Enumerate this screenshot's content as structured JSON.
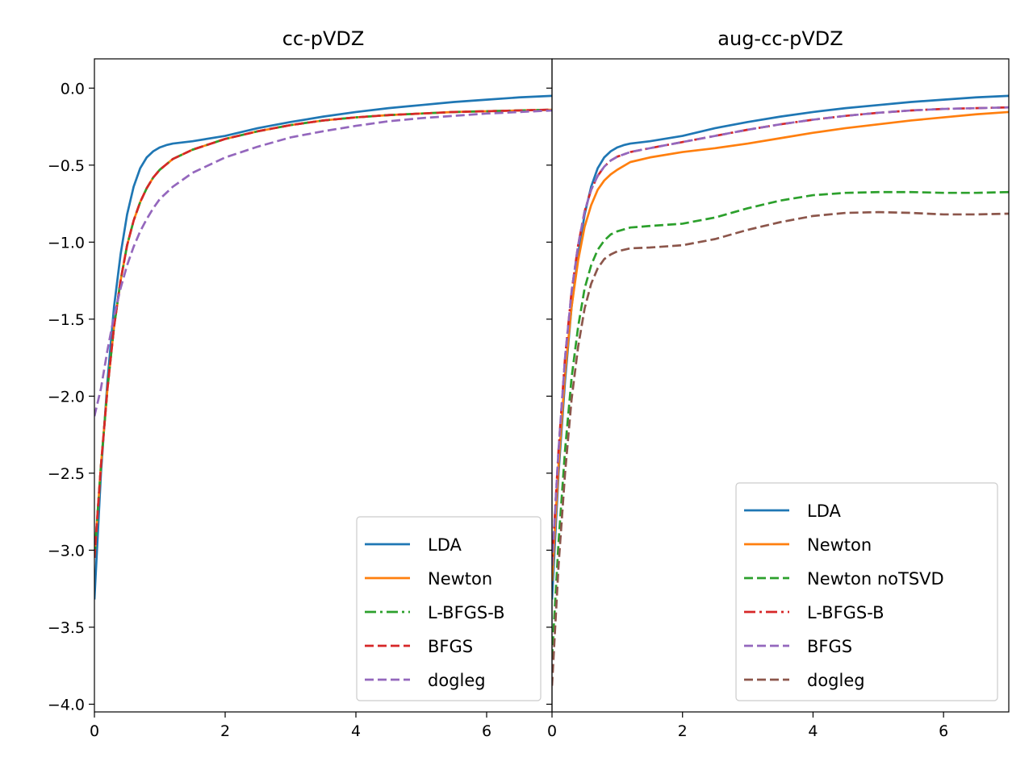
{
  "chart_data": [
    {
      "type": "line",
      "title": "cc-pVDZ",
      "xlabel": "",
      "ylabel": "",
      "xlim": [
        0,
        7
      ],
      "ylim": [
        -4.05,
        0.19
      ],
      "xticks": [
        0,
        2,
        4,
        6
      ],
      "xtick_labels": [
        "0",
        "2",
        "4",
        "6"
      ],
      "yticks": [
        0.0,
        -0.5,
        -1.0,
        -1.5,
        -2.0,
        -2.5,
        -3.0,
        -3.5,
        -4.0
      ],
      "ytick_labels": [
        "0.0",
        "−0.5",
        "−1.0",
        "−1.5",
        "−2.0",
        "−2.5",
        "−3.0",
        "−3.5",
        "−4.0"
      ],
      "grid": false,
      "legend_position": "lower-right",
      "series": [
        {
          "name": "LDA",
          "color": "#1f77b4",
          "style": "solid",
          "x": [
            0,
            0.1,
            0.2,
            0.3,
            0.4,
            0.5,
            0.6,
            0.7,
            0.8,
            0.9,
            1.0,
            1.1,
            1.2,
            1.5,
            2.0,
            2.5,
            3.0,
            3.5,
            4.0,
            4.5,
            5.0,
            5.5,
            6.0,
            6.5,
            7.0
          ],
          "y": [
            -3.32,
            -2.5,
            -1.9,
            -1.42,
            -1.08,
            -0.82,
            -0.64,
            -0.52,
            -0.45,
            -0.41,
            -0.385,
            -0.37,
            -0.36,
            -0.345,
            -0.31,
            -0.26,
            -0.22,
            -0.185,
            -0.155,
            -0.13,
            -0.11,
            -0.09,
            -0.075,
            -0.06,
            -0.05
          ]
        },
        {
          "name": "Newton",
          "color": "#ff7f0e",
          "style": "solid",
          "x": [
            0,
            0.1,
            0.2,
            0.3,
            0.4,
            0.5,
            0.6,
            0.7,
            0.8,
            0.9,
            1.0,
            1.2,
            1.5,
            2.0,
            2.5,
            3.0,
            3.5,
            4.0,
            4.5,
            5.0,
            5.5,
            6.0,
            6.5,
            7.0
          ],
          "y": [
            -3.05,
            -2.45,
            -1.95,
            -1.55,
            -1.25,
            -1.02,
            -0.86,
            -0.74,
            -0.65,
            -0.58,
            -0.53,
            -0.46,
            -0.4,
            -0.33,
            -0.28,
            -0.24,
            -0.21,
            -0.19,
            -0.175,
            -0.165,
            -0.155,
            -0.15,
            -0.145,
            -0.14
          ]
        },
        {
          "name": "L-BFGS-B",
          "color": "#2ca02c",
          "style": "dashdot",
          "x": [
            0,
            0.1,
            0.2,
            0.3,
            0.4,
            0.5,
            0.6,
            0.7,
            0.8,
            0.9,
            1.0,
            1.2,
            1.5,
            2.0,
            2.5,
            3.0,
            3.5,
            4.0,
            4.5,
            5.0,
            5.5,
            6.0,
            6.5,
            7.0
          ],
          "y": [
            -3.05,
            -2.45,
            -1.95,
            -1.55,
            -1.25,
            -1.02,
            -0.86,
            -0.74,
            -0.65,
            -0.58,
            -0.53,
            -0.46,
            -0.4,
            -0.33,
            -0.28,
            -0.24,
            -0.21,
            -0.19,
            -0.175,
            -0.165,
            -0.155,
            -0.15,
            -0.145,
            -0.14
          ]
        },
        {
          "name": "BFGS",
          "color": "#d62728",
          "style": "dashed",
          "x": [
            0,
            0.1,
            0.2,
            0.3,
            0.4,
            0.5,
            0.6,
            0.7,
            0.8,
            0.9,
            1.0,
            1.2,
            1.5,
            2.0,
            2.5,
            3.0,
            3.5,
            4.0,
            4.5,
            5.0,
            5.5,
            6.0,
            6.5,
            7.0
          ],
          "y": [
            -3.05,
            -2.45,
            -1.95,
            -1.55,
            -1.25,
            -1.02,
            -0.86,
            -0.74,
            -0.65,
            -0.58,
            -0.53,
            -0.46,
            -0.4,
            -0.33,
            -0.28,
            -0.24,
            -0.21,
            -0.19,
            -0.175,
            -0.165,
            -0.155,
            -0.15,
            -0.145,
            -0.14
          ]
        },
        {
          "name": "dogleg",
          "color": "#9467bd",
          "style": "dashed",
          "x": [
            0,
            0.1,
            0.2,
            0.3,
            0.4,
            0.5,
            0.6,
            0.7,
            0.8,
            0.9,
            1.0,
            1.2,
            1.5,
            2.0,
            2.5,
            3.0,
            3.5,
            4.0,
            4.5,
            5.0,
            5.5,
            6.0,
            6.5,
            7.0
          ],
          "y": [
            -2.13,
            -1.95,
            -1.7,
            -1.48,
            -1.3,
            -1.15,
            -1.03,
            -0.93,
            -0.85,
            -0.78,
            -0.72,
            -0.64,
            -0.55,
            -0.45,
            -0.38,
            -0.32,
            -0.28,
            -0.245,
            -0.215,
            -0.195,
            -0.18,
            -0.165,
            -0.155,
            -0.145
          ]
        }
      ]
    },
    {
      "type": "line",
      "title": "aug-cc-pVDZ",
      "xlabel": "",
      "ylabel": "",
      "xlim": [
        0,
        7
      ],
      "ylim": [
        -4.05,
        0.19
      ],
      "xticks": [
        0,
        2,
        4,
        6
      ],
      "xtick_labels": [
        "0",
        "2",
        "4",
        "6"
      ],
      "yticks": [
        0.0,
        -0.5,
        -1.0,
        -1.5,
        -2.0,
        -2.5,
        -3.0,
        -3.5,
        -4.0
      ],
      "grid": false,
      "legend_position": "lower-right",
      "series": [
        {
          "name": "LDA",
          "color": "#1f77b4",
          "style": "solid",
          "x": [
            0,
            0.1,
            0.2,
            0.3,
            0.4,
            0.5,
            0.6,
            0.7,
            0.8,
            0.9,
            1.0,
            1.1,
            1.2,
            1.5,
            2.0,
            2.5,
            3.0,
            3.5,
            4.0,
            4.5,
            5.0,
            5.5,
            6.0,
            6.5,
            7.0
          ],
          "y": [
            -3.32,
            -2.5,
            -1.9,
            -1.42,
            -1.08,
            -0.82,
            -0.64,
            -0.52,
            -0.45,
            -0.41,
            -0.385,
            -0.37,
            -0.36,
            -0.345,
            -0.31,
            -0.26,
            -0.22,
            -0.185,
            -0.155,
            -0.13,
            -0.11,
            -0.09,
            -0.075,
            -0.06,
            -0.05
          ]
        },
        {
          "name": "Newton",
          "color": "#ff7f0e",
          "style": "solid",
          "x": [
            0,
            0.1,
            0.2,
            0.3,
            0.4,
            0.5,
            0.6,
            0.7,
            0.8,
            0.9,
            1.0,
            1.2,
            1.5,
            2.0,
            2.5,
            3.0,
            3.5,
            4.0,
            4.5,
            5.0,
            5.5,
            6.0,
            6.5,
            7.0
          ],
          "y": [
            -3.2,
            -2.45,
            -1.85,
            -1.42,
            -1.12,
            -0.9,
            -0.76,
            -0.66,
            -0.6,
            -0.56,
            -0.53,
            -0.48,
            -0.45,
            -0.415,
            -0.39,
            -0.36,
            -0.325,
            -0.29,
            -0.26,
            -0.235,
            -0.21,
            -0.19,
            -0.17,
            -0.155
          ]
        },
        {
          "name": "Newton noTSVD",
          "color": "#2ca02c",
          "style": "dashed",
          "x": [
            0,
            0.1,
            0.2,
            0.3,
            0.4,
            0.5,
            0.6,
            0.7,
            0.8,
            0.9,
            1.0,
            1.2,
            1.5,
            2.0,
            2.5,
            3.0,
            3.5,
            4.0,
            4.5,
            5.0,
            5.5,
            6.0,
            6.5,
            7.0
          ],
          "y": [
            -3.7,
            -2.95,
            -2.35,
            -1.88,
            -1.55,
            -1.3,
            -1.15,
            -1.05,
            -0.99,
            -0.95,
            -0.93,
            -0.905,
            -0.895,
            -0.88,
            -0.84,
            -0.78,
            -0.73,
            -0.695,
            -0.68,
            -0.675,
            -0.675,
            -0.68,
            -0.68,
            -0.675
          ]
        },
        {
          "name": "L-BFGS-B",
          "color": "#d62728",
          "style": "dashdot",
          "x": [
            0,
            0.1,
            0.2,
            0.3,
            0.4,
            0.5,
            0.6,
            0.7,
            0.8,
            0.9,
            1.0,
            1.2,
            1.5,
            2.0,
            2.5,
            3.0,
            3.5,
            4.0,
            4.5,
            5.0,
            5.5,
            6.0,
            6.5,
            7.0
          ],
          "y": [
            -3.1,
            -2.35,
            -1.75,
            -1.32,
            -1.02,
            -0.8,
            -0.66,
            -0.57,
            -0.51,
            -0.47,
            -0.445,
            -0.415,
            -0.39,
            -0.35,
            -0.31,
            -0.27,
            -0.235,
            -0.205,
            -0.18,
            -0.16,
            -0.145,
            -0.135,
            -0.13,
            -0.125
          ]
        },
        {
          "name": "BFGS",
          "color": "#9467bd",
          "style": "dashed",
          "x": [
            0,
            0.1,
            0.2,
            0.3,
            0.4,
            0.5,
            0.6,
            0.7,
            0.8,
            0.9,
            1.0,
            1.2,
            1.5,
            2.0,
            2.5,
            3.0,
            3.5,
            4.0,
            4.5,
            5.0,
            5.5,
            6.0,
            6.5,
            7.0
          ],
          "y": [
            -3.1,
            -2.35,
            -1.75,
            -1.32,
            -1.02,
            -0.8,
            -0.66,
            -0.57,
            -0.51,
            -0.47,
            -0.445,
            -0.415,
            -0.39,
            -0.35,
            -0.31,
            -0.27,
            -0.235,
            -0.205,
            -0.18,
            -0.16,
            -0.145,
            -0.135,
            -0.13,
            -0.125
          ]
        },
        {
          "name": "dogleg",
          "color": "#8c564b",
          "style": "dashed",
          "x": [
            0,
            0.1,
            0.2,
            0.3,
            0.4,
            0.5,
            0.6,
            0.7,
            0.8,
            0.9,
            1.0,
            1.2,
            1.5,
            2.0,
            2.5,
            3.0,
            3.5,
            4.0,
            4.5,
            5.0,
            5.5,
            6.0,
            6.5,
            7.0
          ],
          "y": [
            -3.88,
            -3.1,
            -2.5,
            -2.02,
            -1.68,
            -1.43,
            -1.27,
            -1.17,
            -1.11,
            -1.08,
            -1.06,
            -1.04,
            -1.035,
            -1.02,
            -0.98,
            -0.92,
            -0.87,
            -0.83,
            -0.81,
            -0.805,
            -0.81,
            -0.82,
            -0.82,
            -0.815
          ]
        }
      ]
    }
  ]
}
